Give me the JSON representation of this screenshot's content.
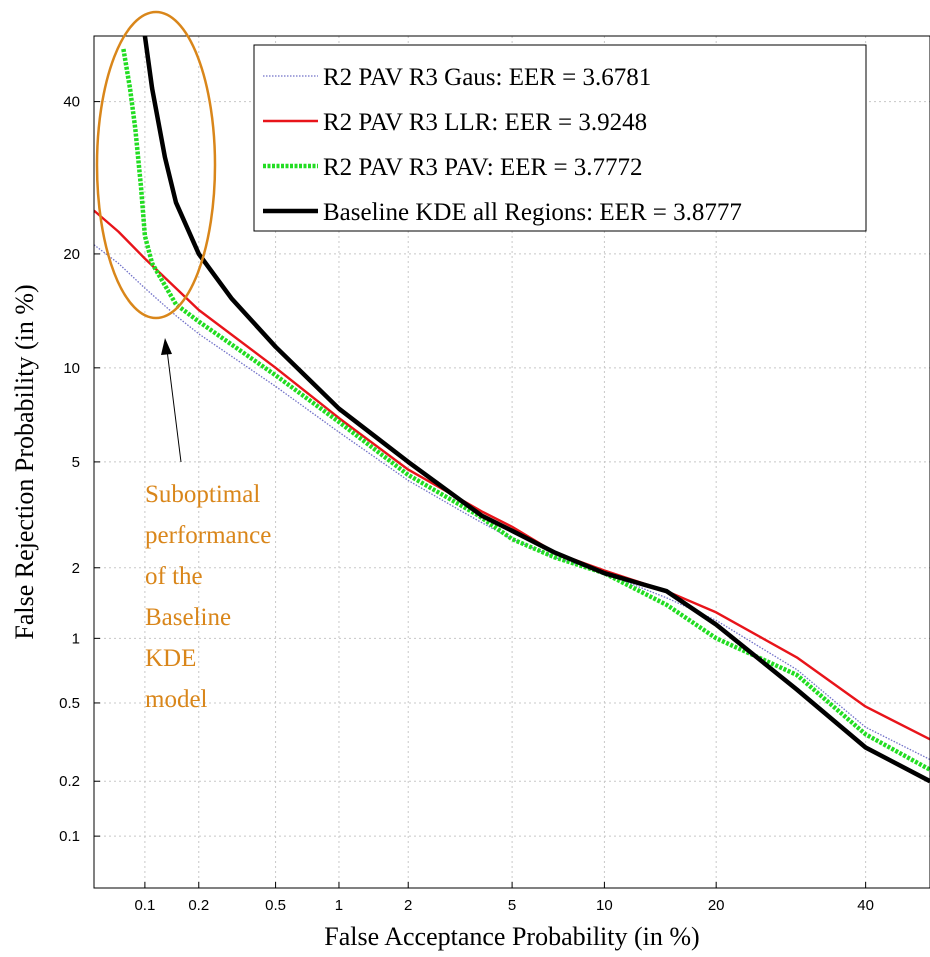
{
  "chart_data": {
    "type": "line",
    "subtype": "DET curve",
    "xlabel": "False Acceptance Probability (in %)",
    "ylabel": "False Rejection Probability (in %)",
    "x_scale": "normal-deviate (probit)",
    "y_scale": "normal-deviate (probit)",
    "xlim": [
      0.05,
      50
    ],
    "ylim": [
      0.05,
      50
    ],
    "x_ticks": [
      0.1,
      0.2,
      0.5,
      1,
      2,
      5,
      10,
      20,
      40
    ],
    "y_ticks": [
      0.1,
      0.2,
      0.5,
      1,
      2,
      5,
      10,
      20,
      40
    ],
    "x_tick_labels": [
      "0.1",
      "0.2",
      "0.5",
      "1",
      "2",
      "5",
      "10",
      "20",
      "40"
    ],
    "y_tick_labels": [
      "0.1",
      "0.2",
      "0.5",
      "1",
      "2",
      "5",
      "10",
      "20",
      "40"
    ],
    "grid": true,
    "legend_position": "top-right",
    "series": [
      {
        "name": "R2 PAV R3 Gaus: EER = 3.6781",
        "color": "#7070c8",
        "style": "dotted-thin",
        "points": [
          [
            0.05,
            21
          ],
          [
            0.07,
            19
          ],
          [
            0.1,
            16.5
          ],
          [
            0.15,
            14
          ],
          [
            0.2,
            12.5
          ],
          [
            0.5,
            8.8
          ],
          [
            1,
            6.3
          ],
          [
            2,
            4.3
          ],
          [
            3.68,
            3.1
          ],
          [
            5,
            2.6
          ],
          [
            7,
            2.2
          ],
          [
            10,
            1.9
          ],
          [
            15,
            1.5
          ],
          [
            20,
            1.2
          ],
          [
            30,
            0.72
          ],
          [
            40,
            0.38
          ],
          [
            50,
            0.26
          ]
        ]
      },
      {
        "name": "R2 PAV R3 LLR: EER = 3.9248",
        "color": "#e8141a",
        "style": "solid",
        "points": [
          [
            0.05,
            25
          ],
          [
            0.07,
            22.5
          ],
          [
            0.1,
            19.5
          ],
          [
            0.15,
            16.5
          ],
          [
            0.2,
            14.5
          ],
          [
            0.5,
            10
          ],
          [
            1,
            7
          ],
          [
            2,
            4.7
          ],
          [
            3.92,
            3.3
          ],
          [
            5,
            2.9
          ],
          [
            7,
            2.3
          ],
          [
            10,
            1.95
          ],
          [
            15,
            1.6
          ],
          [
            20,
            1.3
          ],
          [
            30,
            0.82
          ],
          [
            40,
            0.48
          ],
          [
            50,
            0.33
          ]
        ]
      },
      {
        "name": "R2 PAV R3 PAV: EER = 3.7772",
        "color": "#22dd22",
        "style": "dashed-thick",
        "points": [
          [
            0.075,
            48
          ],
          [
            0.082,
            42
          ],
          [
            0.088,
            36
          ],
          [
            0.095,
            28
          ],
          [
            0.1,
            22
          ],
          [
            0.11,
            19
          ],
          [
            0.15,
            15
          ],
          [
            0.2,
            13.5
          ],
          [
            0.5,
            9.5
          ],
          [
            1,
            6.8
          ],
          [
            2,
            4.5
          ],
          [
            3.78,
            3.2
          ],
          [
            5,
            2.6
          ],
          [
            7,
            2.2
          ],
          [
            10,
            1.9
          ],
          [
            15,
            1.4
          ],
          [
            20,
            1.0
          ],
          [
            30,
            0.68
          ],
          [
            40,
            0.35
          ],
          [
            50,
            0.23
          ]
        ]
      },
      {
        "name": "Baseline KDE all Regions: EER = 3.8777",
        "color": "#000000",
        "style": "solid-thick",
        "points": [
          [
            0.1,
            50
          ],
          [
            0.11,
            42
          ],
          [
            0.13,
            32
          ],
          [
            0.15,
            26
          ],
          [
            0.2,
            20
          ],
          [
            0.3,
            15.5
          ],
          [
            0.5,
            11.5
          ],
          [
            1,
            7.5
          ],
          [
            2,
            5
          ],
          [
            3.88,
            3.2
          ],
          [
            5,
            2.8
          ],
          [
            7,
            2.3
          ],
          [
            10,
            1.9
          ],
          [
            15,
            1.6
          ],
          [
            20,
            1.15
          ],
          [
            30,
            0.58
          ],
          [
            40,
            0.3
          ],
          [
            50,
            0.2
          ]
        ]
      }
    ],
    "annotations": {
      "ellipse_color": "#d9861a",
      "note_lines": [
        "Suboptimal",
        "performance",
        "of the",
        "Baseline",
        "KDE",
        "model"
      ]
    }
  }
}
